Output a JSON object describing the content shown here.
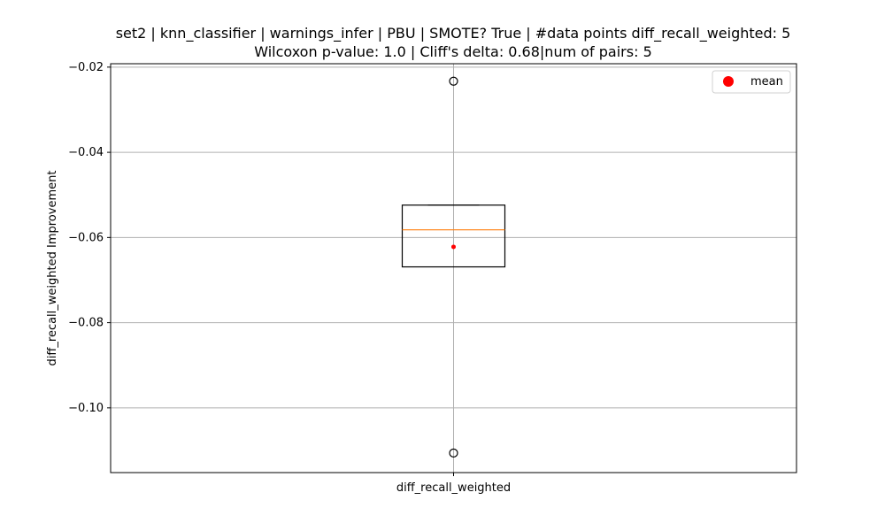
{
  "chart_data": {
    "type": "box",
    "title_line1": "set2 | knn_classifier | warnings_infer | PBU | SMOTE? True | #data points diff_recall_weighted: 5",
    "title_line2": "Wilcoxon p-value: 1.0 | Cliff's delta: 0.68|num of pairs: 5",
    "ylabel": "diff_recall_weighted Improvement",
    "categories": [
      "diff_recall_weighted"
    ],
    "ylim": [
      -0.1152,
      -0.0192
    ],
    "yticks": [
      -0.02,
      -0.04,
      -0.06,
      -0.08,
      -0.1
    ],
    "ytick_labels": [
      "−0.02",
      "−0.04",
      "−0.06",
      "−0.08",
      "−0.10"
    ],
    "grid": true,
    "legend": {
      "position": "top-right",
      "entries": [
        "mean"
      ]
    },
    "colors": {
      "box": "#000000",
      "median": "#ff7f0e",
      "mean": "#ff0000",
      "grid": "#b0b0b0"
    },
    "box": {
      "whisker_low": -0.0669,
      "q1": -0.0669,
      "median": -0.0582,
      "q3": -0.0524,
      "whisker_high": -0.0524,
      "mean": -0.0622,
      "outliers": [
        -0.0233,
        -0.1106
      ]
    }
  }
}
